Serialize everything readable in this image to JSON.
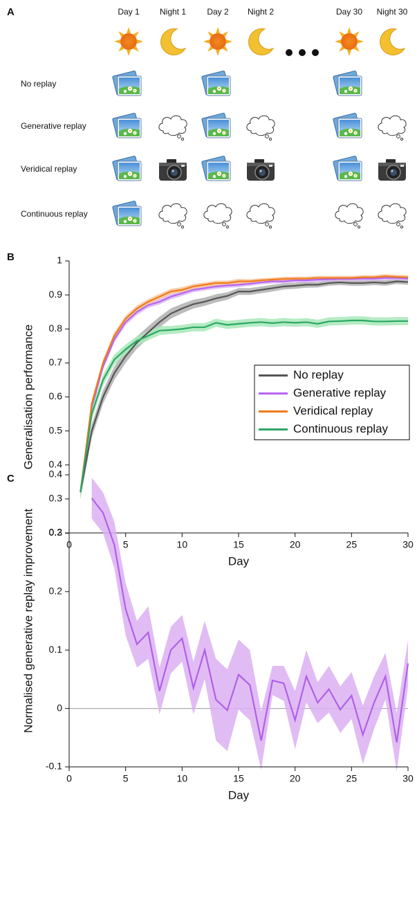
{
  "panel_a": {
    "label": "A",
    "columns": [
      "Day 1",
      "Night 1",
      "Day 2",
      "Night 2",
      "Day 30",
      "Night 30"
    ],
    "rows": [
      "No replay",
      "Generative replay",
      "Veridical replay",
      "Continuous replay"
    ],
    "row_colors": [
      "#111111",
      "#d070e8",
      "#e8891e",
      "#2db36a"
    ]
  },
  "chart_data": [
    {
      "type": "line",
      "panel_label": "B",
      "xlabel": "Day",
      "ylabel": "Generalisation performance",
      "x": [
        1,
        2,
        3,
        4,
        5,
        6,
        7,
        8,
        9,
        10,
        11,
        12,
        13,
        14,
        15,
        16,
        17,
        18,
        19,
        20,
        21,
        22,
        23,
        24,
        25,
        26,
        27,
        28,
        29,
        30
      ],
      "series": [
        {
          "name": "No replay",
          "color": "#555555",
          "band_color": "#b0b0b0",
          "values": [
            0.32,
            0.5,
            0.6,
            0.67,
            0.72,
            0.76,
            0.79,
            0.82,
            0.845,
            0.86,
            0.873,
            0.88,
            0.89,
            0.897,
            0.91,
            0.91,
            0.915,
            0.92,
            0.925,
            0.927,
            0.93,
            0.93,
            0.935,
            0.937,
            0.935,
            0.935,
            0.937,
            0.935,
            0.94,
            0.938
          ],
          "errors": [
            0.02,
            0.02,
            0.02,
            0.02,
            0.02,
            0.018,
            0.018,
            0.016,
            0.015,
            0.014,
            0.013,
            0.012,
            0.012,
            0.011,
            0.01,
            0.01,
            0.01,
            0.01,
            0.009,
            0.009,
            0.009,
            0.008,
            0.008,
            0.008,
            0.008,
            0.008,
            0.008,
            0.008,
            0.008,
            0.008
          ]
        },
        {
          "name": "Generative replay",
          "color": "#b565f0",
          "band_color": "#dab6f6",
          "values": [
            0.32,
            0.57,
            0.69,
            0.77,
            0.82,
            0.85,
            0.87,
            0.88,
            0.895,
            0.905,
            0.915,
            0.92,
            0.925,
            0.928,
            0.93,
            0.933,
            0.937,
            0.94,
            0.94,
            0.943,
            0.943,
            0.945,
            0.946,
            0.947,
            0.947,
            0.948,
            0.948,
            0.95,
            0.95,
            0.948
          ],
          "errors": [
            0.015,
            0.012,
            0.01,
            0.01,
            0.009,
            0.009,
            0.008,
            0.008,
            0.008,
            0.008,
            0.007,
            0.007,
            0.007,
            0.007,
            0.007,
            0.006,
            0.006,
            0.006,
            0.006,
            0.006,
            0.006,
            0.006,
            0.006,
            0.006,
            0.006,
            0.006,
            0.006,
            0.006,
            0.006,
            0.006
          ]
        },
        {
          "name": "Veridical replay",
          "color": "#f07a1a",
          "band_color": "#f8c49a",
          "values": [
            0.32,
            0.58,
            0.7,
            0.78,
            0.83,
            0.86,
            0.88,
            0.895,
            0.91,
            0.915,
            0.925,
            0.93,
            0.935,
            0.935,
            0.94,
            0.94,
            0.943,
            0.945,
            0.947,
            0.948,
            0.948,
            0.95,
            0.95,
            0.95,
            0.95,
            0.952,
            0.952,
            0.955,
            0.953,
            0.952
          ],
          "errors": [
            0.015,
            0.012,
            0.01,
            0.01,
            0.009,
            0.009,
            0.008,
            0.008,
            0.008,
            0.008,
            0.007,
            0.007,
            0.007,
            0.007,
            0.007,
            0.006,
            0.006,
            0.006,
            0.006,
            0.006,
            0.006,
            0.006,
            0.006,
            0.006,
            0.006,
            0.006,
            0.006,
            0.006,
            0.006,
            0.006
          ]
        },
        {
          "name": "Continuous replay",
          "color": "#2aa866",
          "band_color": "#a8e8b8",
          "values": [
            0.32,
            0.55,
            0.65,
            0.71,
            0.74,
            0.765,
            0.78,
            0.795,
            0.797,
            0.8,
            0.805,
            0.805,
            0.818,
            0.812,
            0.815,
            0.818,
            0.82,
            0.817,
            0.82,
            0.818,
            0.82,
            0.815,
            0.822,
            0.823,
            0.825,
            0.825,
            0.822,
            0.822,
            0.823,
            0.823
          ],
          "errors": [
            0.02,
            0.018,
            0.016,
            0.015,
            0.014,
            0.014,
            0.013,
            0.013,
            0.012,
            0.012,
            0.012,
            0.012,
            0.012,
            0.012,
            0.012,
            0.012,
            0.012,
            0.012,
            0.012,
            0.012,
            0.012,
            0.012,
            0.012,
            0.012,
            0.012,
            0.012,
            0.012,
            0.012,
            0.012,
            0.012
          ]
        }
      ],
      "xlim": [
        0,
        30
      ],
      "xticks": [
        0,
        5,
        10,
        15,
        20,
        25,
        30
      ],
      "ylim": [
        0.2,
        1
      ],
      "yticks": [
        0.2,
        0.3,
        0.4,
        0.5,
        0.6,
        0.7,
        0.8,
        0.9,
        1
      ],
      "legend": "right"
    },
    {
      "type": "line",
      "panel_label": "C",
      "xlabel": "Day",
      "ylabel": "Normalised generative replay improvement",
      "x": [
        2,
        3,
        4,
        5,
        6,
        7,
        8,
        9,
        10,
        11,
        12,
        13,
        14,
        15,
        16,
        17,
        18,
        19,
        20,
        21,
        22,
        23,
        24,
        25,
        26,
        27,
        28,
        29,
        30
      ],
      "series": [
        {
          "color": "#b060e8",
          "band_color": "#dcb0f2",
          "values": [
            0.36,
            0.335,
            0.28,
            0.17,
            0.11,
            0.13,
            0.03,
            0.1,
            0.12,
            0.035,
            0.1,
            0.015,
            -0.003,
            0.058,
            0.04,
            -0.055,
            0.048,
            0.043,
            -0.02,
            0.055,
            0.01,
            0.033,
            -0.002,
            0.022,
            -0.045,
            0.01,
            0.055,
            -0.058,
            0.077
          ],
          "errors": [
            0.035,
            0.035,
            0.04,
            0.045,
            0.04,
            0.045,
            0.04,
            0.04,
            0.04,
            0.045,
            0.05,
            0.07,
            0.07,
            0.06,
            0.06,
            0.05,
            0.025,
            0.03,
            0.05,
            0.045,
            0.035,
            0.04,
            0.04,
            0.04,
            0.05,
            0.045,
            0.04,
            0.05,
            0.04
          ]
        }
      ],
      "hline": 0,
      "xlim": [
        0,
        30
      ],
      "xticks": [
        0,
        5,
        10,
        15,
        20,
        25,
        30
      ],
      "ylim": [
        -0.1,
        0.4
      ],
      "yticks": [
        -0.1,
        0,
        0.1,
        0.2,
        0.3,
        0.4
      ]
    }
  ]
}
